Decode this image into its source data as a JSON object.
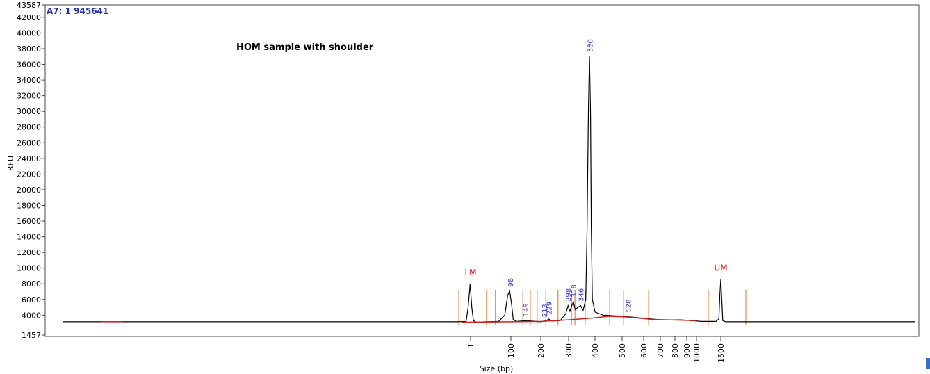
{
  "chart_data": {
    "type": "line",
    "sample_label": "A7: 1 945641",
    "annotation": "HOM sample with shoulder",
    "xlabel": "Size (bp)",
    "ylabel": "RFU",
    "ylim": [
      1457,
      43587
    ],
    "yticks": [
      1457,
      4000,
      6000,
      8000,
      10000,
      12000,
      14000,
      16000,
      18000,
      20000,
      22000,
      24000,
      26000,
      28000,
      30000,
      32000,
      34000,
      36000,
      38000,
      40000,
      42000,
      43587
    ],
    "xlim": [
      -1044,
      5571
    ],
    "xticks": [
      1,
      100,
      200,
      300,
      400,
      500,
      600,
      700,
      800,
      900,
      1000,
      1500
    ],
    "series": [
      {
        "name": "trace",
        "color": "#000000",
        "x": [
          -1000,
          -30,
          -10,
          -5,
          0,
          4,
          8,
          15,
          40,
          70,
          85,
          92,
          97,
          102,
          108,
          120,
          150,
          200,
          220,
          229,
          240,
          270,
          290,
          298,
          305,
          312,
          318,
          325,
          335,
          346,
          355,
          365,
          370,
          375,
          379,
          383,
          386,
          390,
          400,
          430,
          480,
          528,
          600,
          650,
          700,
          850,
          950,
          1100,
          1400,
          1460,
          1480,
          1500,
          1520,
          1540,
          1600,
          5500
        ],
        "values": [
          3150,
          3150,
          3200,
          5000,
          8000,
          5000,
          3300,
          3100,
          3150,
          3200,
          4000,
          6500,
          7100,
          5500,
          3400,
          3200,
          3300,
          3150,
          3300,
          3500,
          3250,
          3300,
          4200,
          5200,
          4500,
          5200,
          5700,
          4700,
          5000,
          5200,
          4600,
          6000,
          15000,
          30000,
          37000,
          30000,
          15000,
          6000,
          4400,
          4000,
          3900,
          3800,
          3600,
          3500,
          3400,
          3400,
          3300,
          3200,
          3200,
          3500,
          6500,
          8600,
          6000,
          3300,
          3150,
          3150
        ]
      },
      {
        "name": "baseline",
        "color": "#cc2222",
        "x": [
          -907,
          -856,
          -500,
          -20,
          100,
          200,
          300,
          380,
          450,
          528,
          650,
          1000
        ],
        "values": [
          3150,
          3150,
          null,
          3100,
          3150,
          3200,
          3400,
          3600,
          3850,
          3750,
          3450,
          3300
        ]
      }
    ],
    "boundaries": [
      -28,
      40,
      62,
      140,
      165,
      188,
      218,
      262,
      311,
      324,
      363,
      454,
      506,
      629,
      1243,
      2014
    ],
    "boundary_color": "#e07020",
    "marker_label_color": "#cc0000",
    "size_label_color": "#3333cc",
    "peaks": [
      {
        "label": "LM",
        "x": 1,
        "height": 8000
      },
      {
        "x": 98,
        "height": 7100
      },
      {
        "x": 149,
        "height": 3300
      },
      {
        "x": 213,
        "height": 3200
      },
      {
        "x": 229,
        "height": 3500
      },
      {
        "x": 298,
        "height": 5200
      },
      {
        "x": 318,
        "height": 5700
      },
      {
        "x": 346,
        "height": 5200
      },
      {
        "x": 380,
        "height": 37000
      },
      {
        "x": 528,
        "height": 3800
      },
      {
        "label": "UM",
        "x": 1500,
        "height": 8600
      }
    ]
  }
}
